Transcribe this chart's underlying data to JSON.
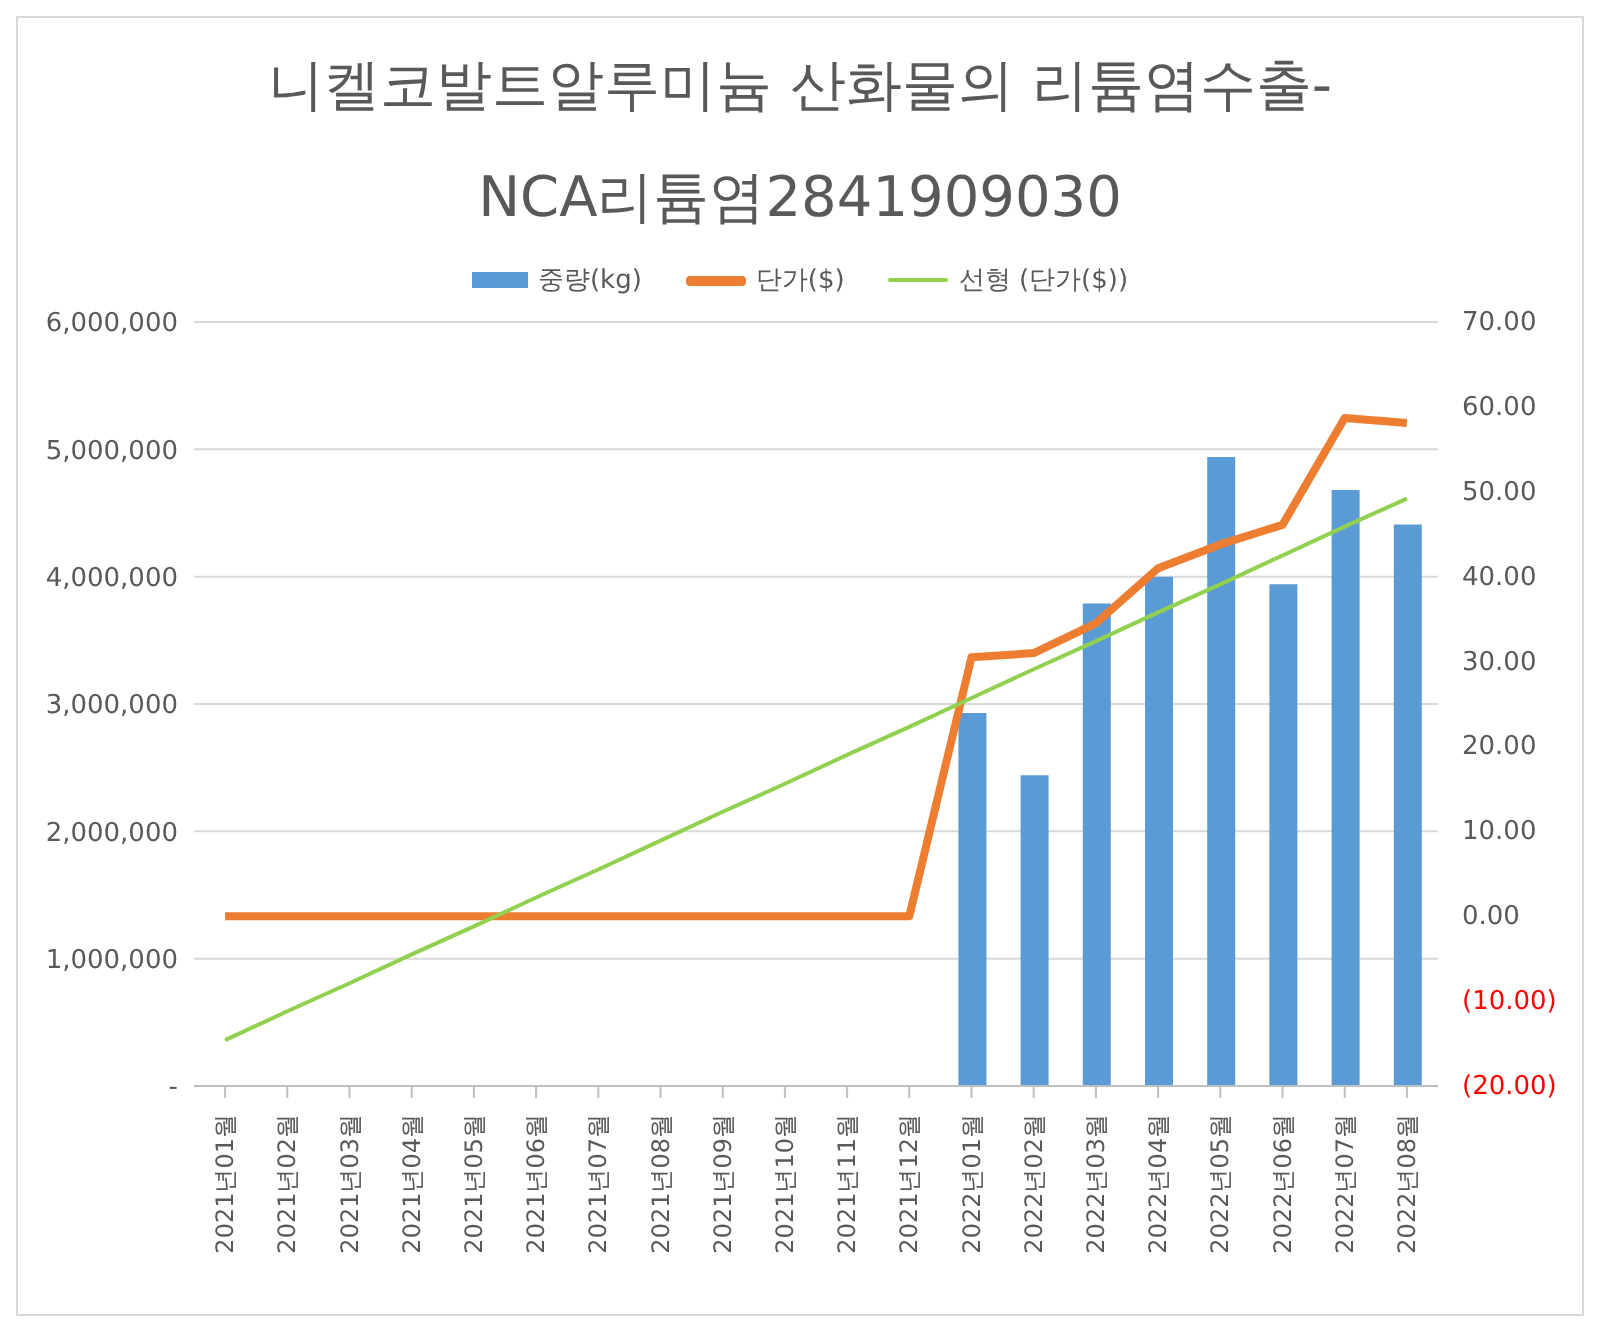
{
  "chart_data": {
    "type": "bar",
    "title": "니켈코발트알루미늄 산화물의 리튬염수출-\nNCA리튬염2841909030",
    "categories": [
      "2021년01월",
      "2021년02월",
      "2021년03월",
      "2021년04월",
      "2021년05월",
      "2021년06월",
      "2021년07월",
      "2021년08월",
      "2021년09월",
      "2021년10월",
      "2021년11월",
      "2021년12월",
      "2022년01월",
      "2022년02월",
      "2022년03월",
      "2022년04월",
      "2022년05월",
      "2022년06월",
      "2022년07월",
      "2022년08월"
    ],
    "series": [
      {
        "name": "중량(kg)",
        "color": "#5b9bd5",
        "values": [
          null,
          null,
          null,
          null,
          null,
          null,
          null,
          null,
          null,
          null,
          null,
          null,
          2930000,
          2440000,
          3790000,
          4000000,
          4940000,
          3940000,
          4680000,
          4410000
        ]
      },
      {
        "name": "단가($)",
        "type": "line",
        "axis": "y2",
        "color": "#ed7d31",
        "values": [
          0,
          0,
          0,
          0,
          0,
          0,
          0,
          0,
          0,
          0,
          0,
          0,
          30.5,
          31.0,
          34.5,
          41.0,
          43.8,
          46.1,
          58.7,
          58.1
        ]
      },
      {
        "name": "선형 (단가($))",
        "type": "line",
        "axis": "y2",
        "color": "#92d050",
        "values": [
          -14.6,
          -11.2,
          -7.9,
          -4.5,
          -1.2,
          2.2,
          5.5,
          8.9,
          12.3,
          15.6,
          19.0,
          22.3,
          25.7,
          29.1,
          32.4,
          35.8,
          39.1,
          42.5,
          45.9,
          49.2
        ]
      }
    ],
    "ylim": [
      0,
      6000000
    ],
    "yticks": [
      {
        "value": 0,
        "label": "-"
      },
      {
        "value": 1000000,
        "label": "1,000,000"
      },
      {
        "value": 2000000,
        "label": "2,000,000"
      },
      {
        "value": 3000000,
        "label": "3,000,000"
      },
      {
        "value": 4000000,
        "label": "4,000,000"
      },
      {
        "value": 5000000,
        "label": "5,000,000"
      },
      {
        "value": 6000000,
        "label": "6,000,000"
      }
    ],
    "y2lim": [
      -20,
      70
    ],
    "y2ticks": [
      {
        "value": -20,
        "label": "(20.00)"
      },
      {
        "value": -10,
        "label": "(10.00)"
      },
      {
        "value": 0,
        "label": "0.00"
      },
      {
        "value": 10,
        "label": "10.00"
      },
      {
        "value": 20,
        "label": "20.00"
      },
      {
        "value": 30,
        "label": "30.00"
      },
      {
        "value": 40,
        "label": "40.00"
      },
      {
        "value": 50,
        "label": "50.00"
      },
      {
        "value": 60,
        "label": "60.00"
      },
      {
        "value": 70,
        "label": "70.00"
      }
    ],
    "grid": "y",
    "legend": "top",
    "marker": "none"
  }
}
